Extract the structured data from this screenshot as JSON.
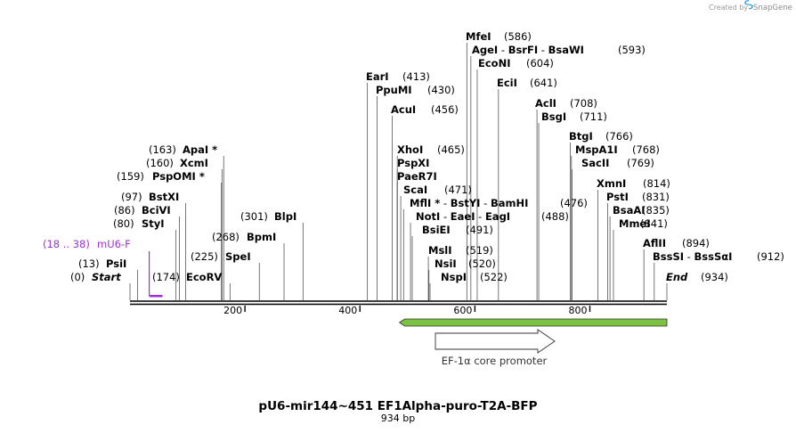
{
  "credit": {
    "text": "Created by",
    "brand": "SnapGene",
    "icon": "snapgene-logo-icon"
  },
  "map": {
    "title": "pU6-mir144~451 EF1Alpha-puro-T2A-BFP",
    "length_label": "934 bp",
    "length": 934,
    "ruler_ticks": [
      "200",
      "400",
      "600",
      "800"
    ],
    "feature": {
      "label": "EF-1α core promoter",
      "start": 478,
      "end": 934,
      "color": "#7cc242"
    },
    "primer": {
      "range": "(18 .. 38)",
      "name": "mU6-F",
      "start": 18,
      "end": 38,
      "color": "#9b30d9"
    },
    "sites": [
      {
        "name": "Start",
        "pos": 0,
        "pos_label": "(0)",
        "side": "left",
        "italic": true
      },
      {
        "name": "PsiI",
        "pos": 13,
        "pos_label": "(13)",
        "side": "left"
      },
      {
        "name": "StyI",
        "pos": 80,
        "pos_label": "(80)",
        "side": "left"
      },
      {
        "name": "BciVI",
        "pos": 86,
        "pos_label": "(86)",
        "side": "left"
      },
      {
        "name": "BstXI",
        "pos": 97,
        "pos_label": "(97)",
        "side": "left"
      },
      {
        "name": "PspOMI",
        "pos": 159,
        "pos_label": "(159)",
        "side": "left",
        "star": true
      },
      {
        "name": "XcmI",
        "pos": 160,
        "pos_label": "(160)",
        "side": "left"
      },
      {
        "name": "ApaI",
        "pos": 163,
        "pos_label": "(163)",
        "side": "left",
        "star": true
      },
      {
        "name": "EcoRV",
        "pos": 174,
        "pos_label": "(174)",
        "side": "left"
      },
      {
        "name": "SpeI",
        "pos": 225,
        "pos_label": "(225)",
        "side": "left"
      },
      {
        "name": "BpmI",
        "pos": 268,
        "pos_label": "(268)",
        "side": "left"
      },
      {
        "name": "BlpI",
        "pos": 301,
        "pos_label": "(301)",
        "side": "left"
      },
      {
        "name": "EarI",
        "pos": 413,
        "pos_label": "(413)",
        "side": "right"
      },
      {
        "name": "PpuMI",
        "pos": 430,
        "pos_label": "(430)",
        "side": "right"
      },
      {
        "name": "AcuI",
        "pos": 456,
        "pos_label": "(456)",
        "side": "right"
      },
      {
        "name": "XhoI",
        "pos": 465,
        "pos_label": "(465)",
        "side": "right"
      },
      {
        "name": "PspXI",
        "pos": 465,
        "side": "right"
      },
      {
        "name": "PaeR7I",
        "pos": 465,
        "side": "right"
      },
      {
        "name": "ScaI",
        "pos": 471,
        "pos_label": "(471)",
        "side": "right"
      },
      {
        "names": [
          "MflI",
          "BstYI",
          "BamHI"
        ],
        "pos": 476,
        "pos_label": "(476)",
        "side": "right",
        "star_first": true
      },
      {
        "names": [
          "NotI",
          "EaeI",
          "EagI"
        ],
        "pos": 488,
        "pos_label": "(488)",
        "side": "right"
      },
      {
        "name": "BsiEI",
        "pos": 491,
        "pos_label": "(491)",
        "side": "right"
      },
      {
        "name": "MslI",
        "pos": 519,
        "pos_label": "(519)",
        "side": "right"
      },
      {
        "name": "NsiI",
        "pos": 520,
        "pos_label": "(520)",
        "side": "right"
      },
      {
        "name": "NspI",
        "pos": 522,
        "pos_label": "(522)",
        "side": "right"
      },
      {
        "name": "MfeI",
        "pos": 586,
        "pos_label": "(586)",
        "side": "right"
      },
      {
        "names": [
          "AgeI",
          "BsrFI",
          "BsaWI"
        ],
        "pos": 593,
        "pos_label": "(593)",
        "side": "right"
      },
      {
        "name": "EcoNI",
        "pos": 604,
        "pos_label": "(604)",
        "side": "right"
      },
      {
        "name": "EciI",
        "pos": 641,
        "pos_label": "(641)",
        "side": "right"
      },
      {
        "name": "AclI",
        "pos": 708,
        "pos_label": "(708)",
        "side": "right"
      },
      {
        "name": "BsgI",
        "pos": 711,
        "pos_label": "(711)",
        "side": "right"
      },
      {
        "name": "BtgI",
        "pos": 766,
        "pos_label": "(766)",
        "side": "right"
      },
      {
        "name": "MspA1I",
        "pos": 768,
        "pos_label": "(768)",
        "side": "right"
      },
      {
        "name": "SacII",
        "pos": 769,
        "pos_label": "(769)",
        "side": "right"
      },
      {
        "name": "XmnI",
        "pos": 814,
        "pos_label": "(814)",
        "side": "right"
      },
      {
        "name": "PstI",
        "pos": 831,
        "pos_label": "(831)",
        "side": "right"
      },
      {
        "name": "BsaAI",
        "pos": 835,
        "pos_label": "(835)",
        "side": "right"
      },
      {
        "name": "MmeI",
        "pos": 841,
        "pos_label": "(841)",
        "side": "right"
      },
      {
        "name": "AflII",
        "pos": 894,
        "pos_label": "(894)",
        "side": "right"
      },
      {
        "names": [
          "BssSI",
          "BssSαI"
        ],
        "pos": 912,
        "pos_label": "(912)",
        "side": "right"
      },
      {
        "name": "End",
        "pos": 934,
        "pos_label": "(934)",
        "side": "right",
        "italic": true
      }
    ]
  }
}
